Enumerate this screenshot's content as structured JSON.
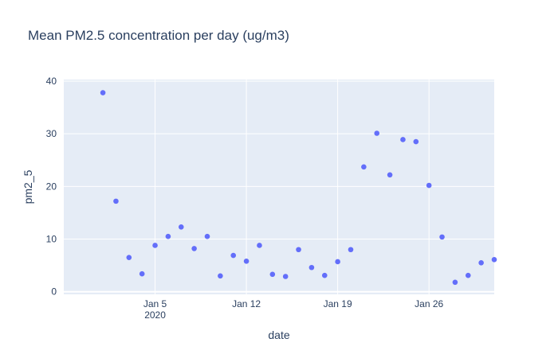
{
  "chart_data": {
    "type": "scatter",
    "title": "Mean PM2.5 concentration per day (ug/m3)",
    "xlabel": "date",
    "ylabel": "pm2_5",
    "xlim": [
      "2019-12-29",
      "2020-01-31"
    ],
    "ylim": [
      -0.5,
      40.3
    ],
    "x_ticks": [
      {
        "date": "2020-01-05",
        "label": "Jan 5",
        "sublabel": "2020"
      },
      {
        "date": "2020-01-12",
        "label": "Jan 12",
        "sublabel": ""
      },
      {
        "date": "2020-01-19",
        "label": "Jan 19",
        "sublabel": ""
      },
      {
        "date": "2020-01-26",
        "label": "Jan 26",
        "sublabel": ""
      }
    ],
    "y_ticks": [
      0,
      10,
      20,
      30,
      40
    ],
    "grid": true,
    "colors": {
      "marker": "#636efa",
      "plot_bg": "#e5ecf6",
      "grid": "#ffffff",
      "text": "#2a3f5f"
    },
    "series": [
      {
        "points": [
          {
            "x": "2020-01-01",
            "y": 37.8
          },
          {
            "x": "2020-01-02",
            "y": 17.2
          },
          {
            "x": "2020-01-03",
            "y": 6.5
          },
          {
            "x": "2020-01-04",
            "y": 3.4
          },
          {
            "x": "2020-01-05",
            "y": 8.8
          },
          {
            "x": "2020-01-06",
            "y": 10.5
          },
          {
            "x": "2020-01-07",
            "y": 12.3
          },
          {
            "x": "2020-01-08",
            "y": 8.2
          },
          {
            "x": "2020-01-09",
            "y": 10.5
          },
          {
            "x": "2020-01-10",
            "y": 3.0
          },
          {
            "x": "2020-01-11",
            "y": 6.9
          },
          {
            "x": "2020-01-12",
            "y": 5.8
          },
          {
            "x": "2020-01-13",
            "y": 8.8
          },
          {
            "x": "2020-01-14",
            "y": 3.3
          },
          {
            "x": "2020-01-15",
            "y": 2.9
          },
          {
            "x": "2020-01-16",
            "y": 8.0
          },
          {
            "x": "2020-01-17",
            "y": 4.6
          },
          {
            "x": "2020-01-18",
            "y": 3.1
          },
          {
            "x": "2020-01-19",
            "y": 5.7
          },
          {
            "x": "2020-01-20",
            "y": 8.0
          },
          {
            "x": "2020-01-21",
            "y": 23.7
          },
          {
            "x": "2020-01-22",
            "y": 30.1
          },
          {
            "x": "2020-01-23",
            "y": 22.2
          },
          {
            "x": "2020-01-24",
            "y": 28.9
          },
          {
            "x": "2020-01-25",
            "y": 28.5
          },
          {
            "x": "2020-01-26",
            "y": 20.2
          },
          {
            "x": "2020-01-27",
            "y": 10.4
          },
          {
            "x": "2020-01-28",
            "y": 1.8
          },
          {
            "x": "2020-01-29",
            "y": 3.1
          },
          {
            "x": "2020-01-30",
            "y": 5.5
          },
          {
            "x": "2020-01-31",
            "y": 6.1
          }
        ]
      }
    ]
  }
}
